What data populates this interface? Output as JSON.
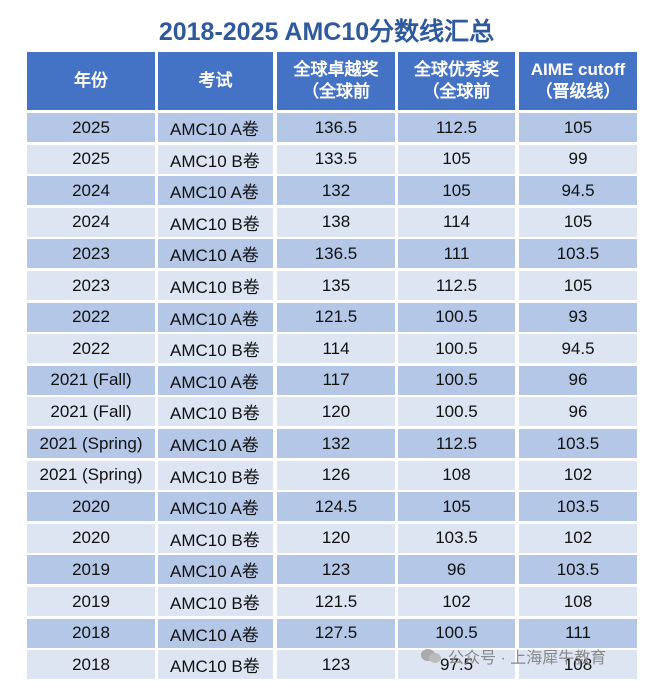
{
  "title": "2018-2025 AMC10分数线汇总",
  "table": {
    "header": [
      [
        "年份"
      ],
      [
        "考试"
      ],
      [
        "全球卓越奖",
        "（全球前"
      ],
      [
        "全球优秀奖",
        "（全球前"
      ],
      [
        "AIME cutoff",
        "（晋级线）"
      ]
    ],
    "rows": [
      [
        "2025",
        "AMC10 A卷",
        "136.5",
        "112.5",
        "105"
      ],
      [
        "2025",
        "AMC10 B卷",
        "133.5",
        "105",
        "99"
      ],
      [
        "2024",
        "AMC10 A卷",
        "132",
        "105",
        "94.5"
      ],
      [
        "2024",
        "AMC10 B卷",
        "138",
        "114",
        "105"
      ],
      [
        "2023",
        "AMC10 A卷",
        "136.5",
        "111",
        "103.5"
      ],
      [
        "2023",
        "AMC10 B卷",
        "135",
        "112.5",
        "105"
      ],
      [
        "2022",
        "AMC10 A卷",
        "121.5",
        "100.5",
        "93"
      ],
      [
        "2022",
        "AMC10 B卷",
        "114",
        "100.5",
        "94.5"
      ],
      [
        "2021 (Fall)",
        "AMC10 A卷",
        "117",
        "100.5",
        "96"
      ],
      [
        "2021 (Fall)",
        "AMC10 B卷",
        "120",
        "100.5",
        "96"
      ],
      [
        "2021 (Spring)",
        "AMC10 A卷",
        "132",
        "112.5",
        "103.5"
      ],
      [
        "2021 (Spring)",
        "AMC10 B卷",
        "126",
        "108",
        "102"
      ],
      [
        "2020",
        "AMC10 A卷",
        "124.5",
        "105",
        "103.5"
      ],
      [
        "2020",
        "AMC10 B卷",
        "120",
        "103.5",
        "102"
      ],
      [
        "2019",
        "AMC10 A卷",
        "123",
        "96",
        "103.5"
      ],
      [
        "2019",
        "AMC10 B卷",
        "121.5",
        "102",
        "108"
      ],
      [
        "2018",
        "AMC10 A卷",
        "127.5",
        "100.5",
        "111"
      ],
      [
        "2018",
        "AMC10 B卷",
        "123",
        "97.5",
        "108"
      ]
    ]
  },
  "watermark": "公众号 · 上海犀牛教育"
}
